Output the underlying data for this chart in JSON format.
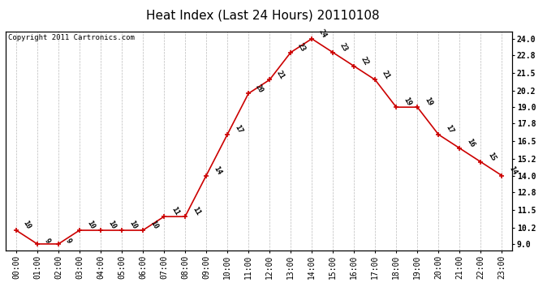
{
  "title": "Heat Index (Last 24 Hours) 20110108",
  "copyright": "Copyright 2011 Cartronics.com",
  "hours": [
    "00:00",
    "01:00",
    "02:00",
    "03:00",
    "04:00",
    "05:00",
    "06:00",
    "07:00",
    "08:00",
    "09:00",
    "10:00",
    "11:00",
    "12:00",
    "13:00",
    "14:00",
    "15:00",
    "16:00",
    "17:00",
    "18:00",
    "19:00",
    "20:00",
    "21:00",
    "22:00",
    "23:00"
  ],
  "values": [
    10,
    9,
    9,
    10,
    10,
    10,
    10,
    11,
    11,
    14,
    17,
    20,
    21,
    23,
    24,
    23,
    22,
    21,
    19,
    19,
    17,
    16,
    15,
    14
  ],
  "line_color": "#cc0000",
  "marker_color": "#cc0000",
  "bg_color": "#ffffff",
  "plot_bg_color": "#ffffff",
  "grid_color": "#bbbbbb",
  "ylim_min": 8.5,
  "ylim_max": 24.5,
  "yticks_right": [
    9.0,
    10.2,
    11.5,
    12.8,
    14.0,
    15.2,
    16.5,
    17.8,
    19.0,
    20.2,
    21.5,
    22.8,
    24.0
  ],
  "title_fontsize": 11,
  "copyright_fontsize": 6.5,
  "label_fontsize": 6.5,
  "tick_fontsize": 7
}
